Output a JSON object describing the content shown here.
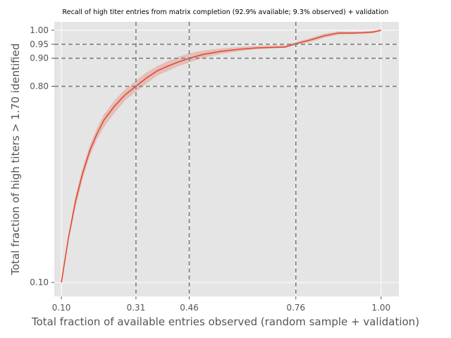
{
  "chart_data": {
    "type": "line",
    "title": "Recall of high titer entries from matrix completion (92.9% available; 9.3% observed) + validation",
    "xlabel": "Total fraction of available entries observed (random sample + validation)",
    "ylabel": "Total fraction of high titers > 1.70 identified",
    "xlim": [
      0.08,
      1.05
    ],
    "ylim": [
      0.05,
      1.03
    ],
    "x_ticks": [
      "0.10",
      "0.31",
      "0.46",
      "0.76",
      "1.00"
    ],
    "y_ticks": [
      "0.10",
      "0.80",
      "0.90",
      "0.95",
      "1.00"
    ],
    "reference_lines": {
      "x": [
        0.31,
        0.46,
        0.76
      ],
      "y": [
        0.8,
        0.9,
        0.95
      ]
    },
    "grid": true,
    "series": [
      {
        "color": "#E24A33",
        "x": [
          0.1,
          0.12,
          0.14,
          0.16,
          0.18,
          0.2,
          0.22,
          0.25,
          0.28,
          0.31,
          0.34,
          0.37,
          0.4,
          0.43,
          0.46,
          0.5,
          0.55,
          0.6,
          0.65,
          0.73,
          0.76,
          0.8,
          0.84,
          0.88,
          0.92,
          0.95,
          0.98,
          1.0
        ],
        "y": [
          0.1,
          0.26,
          0.39,
          0.49,
          0.57,
          0.63,
          0.68,
          0.73,
          0.77,
          0.8,
          0.83,
          0.855,
          0.872,
          0.887,
          0.9,
          0.914,
          0.925,
          0.932,
          0.937,
          0.94,
          0.952,
          0.965,
          0.98,
          0.99,
          0.99,
          0.991,
          0.994,
          1.0
        ],
        "lower": [
          0.1,
          0.25,
          0.37,
          0.47,
          0.55,
          0.61,
          0.655,
          0.705,
          0.75,
          0.78,
          0.81,
          0.838,
          0.855,
          0.872,
          0.885,
          0.902,
          0.915,
          0.925,
          0.932,
          0.937,
          0.947,
          0.958,
          0.973,
          0.984,
          0.986,
          0.987,
          0.99,
          0.997
        ],
        "upper": [
          0.1,
          0.27,
          0.41,
          0.51,
          0.59,
          0.65,
          0.7,
          0.75,
          0.79,
          0.82,
          0.85,
          0.872,
          0.89,
          0.905,
          0.918,
          0.928,
          0.935,
          0.94,
          0.944,
          0.947,
          0.958,
          0.972,
          0.988,
          0.996,
          0.995,
          0.996,
          0.998,
          1.003
        ]
      }
    ]
  },
  "colors": {
    "plot_background": "#E5E5E5",
    "grid": "#FFFFFF",
    "reference_line": "#808080",
    "band": "#E24A33",
    "tick_text": "#555555"
  }
}
